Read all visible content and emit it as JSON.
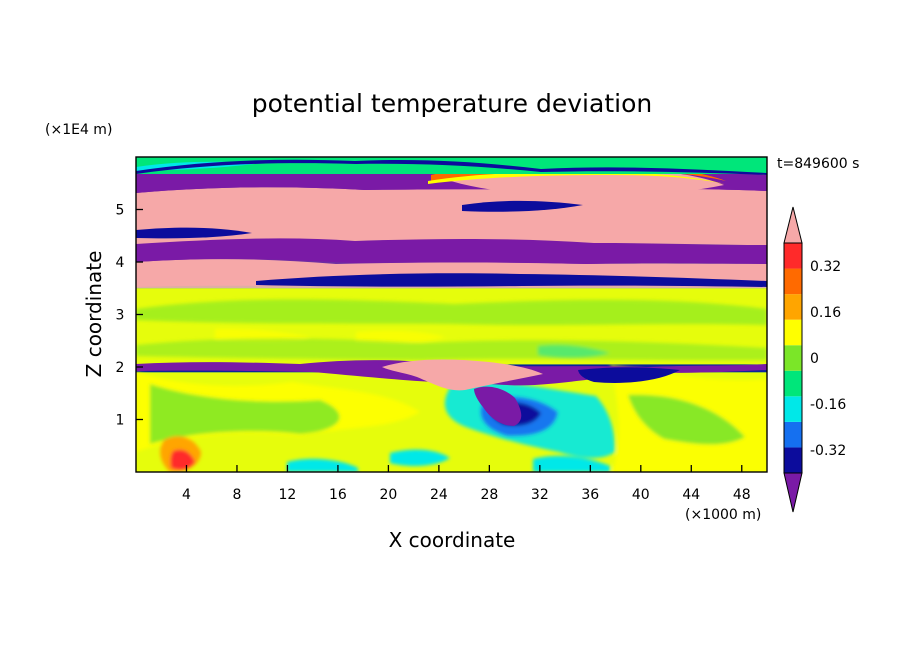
{
  "chart_data": {
    "type": "heatmap",
    "title": "potential temperature deviation",
    "xlabel": "X coordinate",
    "ylabel": "Z coordinate",
    "x_unit": "(×1000 m)",
    "y_unit": "(×1E4 m)",
    "time_label": "t=849600 s",
    "xlim": [
      0,
      50
    ],
    "ylim": [
      0,
      6
    ],
    "x_ticks": [
      4,
      8,
      12,
      16,
      20,
      24,
      28,
      32,
      36,
      40,
      44,
      48
    ],
    "y_ticks": [
      1,
      2,
      3,
      4,
      5
    ],
    "colorbar": {
      "levels": [
        -0.4,
        -0.32,
        -0.24,
        -0.16,
        -0.08,
        0,
        0.08,
        0.16,
        0.24,
        0.32,
        0.4
      ],
      "labels": [
        "0.32",
        "0.16",
        "0",
        "-0.16",
        "-0.32"
      ],
      "label_values": [
        0.32,
        0.16,
        0,
        -0.16,
        -0.32
      ],
      "colors_bottom_to_top": [
        "#7a1aa6",
        "#0c0c9c",
        "#1570f0",
        "#00e8e8",
        "#00e67a",
        "#7be628",
        "#ffff00",
        "#ffa500",
        "#ff6a00",
        "#ff2a2a",
        "#f6a8a8"
      ],
      "extend": "both"
    },
    "bands": [
      {
        "z": [
          0.0,
          1.9
        ],
        "value": 0.04,
        "note": "lower troposphere mostly green with yellow patches"
      },
      {
        "z": [
          1.9,
          2.05
        ],
        "value": -0.38,
        "note": "thin purple layer with pink blobs"
      },
      {
        "z": [
          2.05,
          3.5
        ],
        "value": 0.02,
        "note": "green / mint band"
      },
      {
        "z": [
          3.5,
          3.95
        ],
        "value": 0.42,
        "note": "pink layer"
      },
      {
        "z": [
          3.95,
          4.5
        ],
        "value": -0.42,
        "note": "purple layer"
      },
      {
        "z": [
          4.5,
          5.3
        ],
        "value": 0.42,
        "note": "pink layer"
      },
      {
        "z": [
          5.3,
          5.6
        ],
        "value": -0.42,
        "note": "purple layer"
      },
      {
        "z": [
          5.6,
          6.0
        ],
        "value": 0.0,
        "note": "green top"
      }
    ]
  }
}
